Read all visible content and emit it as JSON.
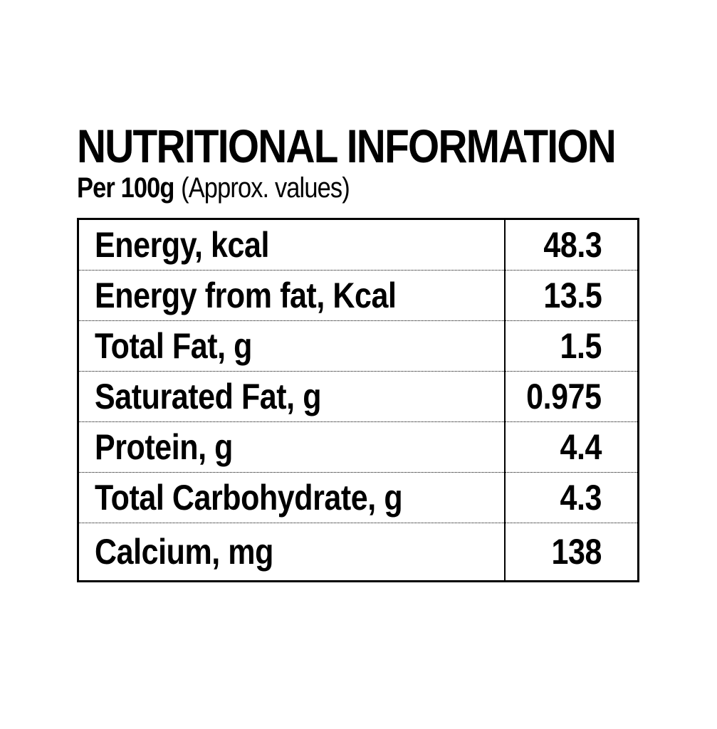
{
  "panel": {
    "title": "NUTRITIONAL INFORMATION",
    "basis": "Per 100g",
    "note": "(Approx. values)"
  },
  "rows": [
    {
      "label": "Energy, kcal",
      "value": "48.3"
    },
    {
      "label": "Energy from fat, Kcal",
      "value": "13.5"
    },
    {
      "label": "Total Fat, g",
      "value": "1.5"
    },
    {
      "label": "Saturated Fat, g",
      "value": "0.975"
    },
    {
      "label": "Protein, g",
      "value": "4.4"
    },
    {
      "label": "Total Carbohydrate, g",
      "value": "4.3"
    },
    {
      "label": "Calcium, mg",
      "value": "138"
    }
  ]
}
